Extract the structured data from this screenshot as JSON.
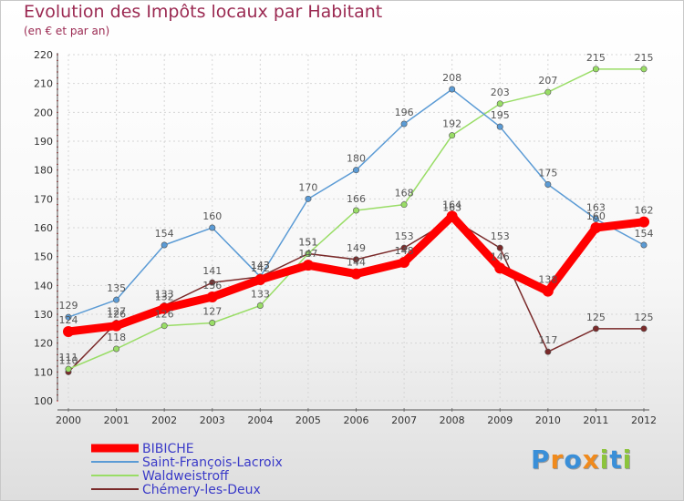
{
  "header": {
    "title": "Evolution des Impôts locaux par Habitant",
    "subtitle": "(en € et par an)"
  },
  "logo": {
    "letters": [
      {
        "ch": "P",
        "color": "#3a8fd8"
      },
      {
        "ch": "r",
        "color": "#f08a1c"
      },
      {
        "ch": "o",
        "color": "#3a8fd8"
      },
      {
        "ch": "x",
        "color": "#f08a1c"
      },
      {
        "ch": "i",
        "color": "#8cc43c"
      },
      {
        "ch": "t",
        "color": "#3a8fd8"
      },
      {
        "ch": "i",
        "color": "#8cc43c"
      }
    ]
  },
  "chart_data": {
    "type": "line",
    "title": "Evolution des Impôts locaux par Habitant",
    "subtitle": "(en € et par an)",
    "xlabel": "",
    "ylabel": "",
    "categories": [
      "2000",
      "2001",
      "2002",
      "2003",
      "2004",
      "2005",
      "2006",
      "2007",
      "2008",
      "2009",
      "2010",
      "2011",
      "2012"
    ],
    "ylim": [
      100,
      220
    ],
    "yticks": [
      100,
      110,
      120,
      130,
      140,
      150,
      160,
      170,
      180,
      190,
      200,
      210,
      220
    ],
    "grid": true,
    "legend_position": "bottom-left",
    "series": [
      {
        "name": "BIBICHE",
        "color": "#ff0000",
        "values": [
          124,
          126,
          132,
          136,
          142,
          147,
          144,
          148,
          164,
          146,
          138,
          160,
          162
        ]
      },
      {
        "name": "Saint-François-Lacroix",
        "color": "#5b9bd5",
        "values": [
          129,
          135,
          154,
          160,
          143,
          170,
          180,
          196,
          208,
          195,
          175,
          163,
          154
        ]
      },
      {
        "name": "Waldweistroff",
        "color": "#99dd66",
        "values": [
          111,
          118,
          126,
          127,
          133,
          151,
          166,
          168,
          192,
          203,
          207,
          215,
          215
        ]
      },
      {
        "name": "Chémery-les-Deux",
        "color": "#7a2a2a",
        "values": [
          110,
          127,
          133,
          141,
          143,
          151,
          149,
          153,
          163,
          153,
          117,
          125,
          125
        ]
      }
    ]
  }
}
